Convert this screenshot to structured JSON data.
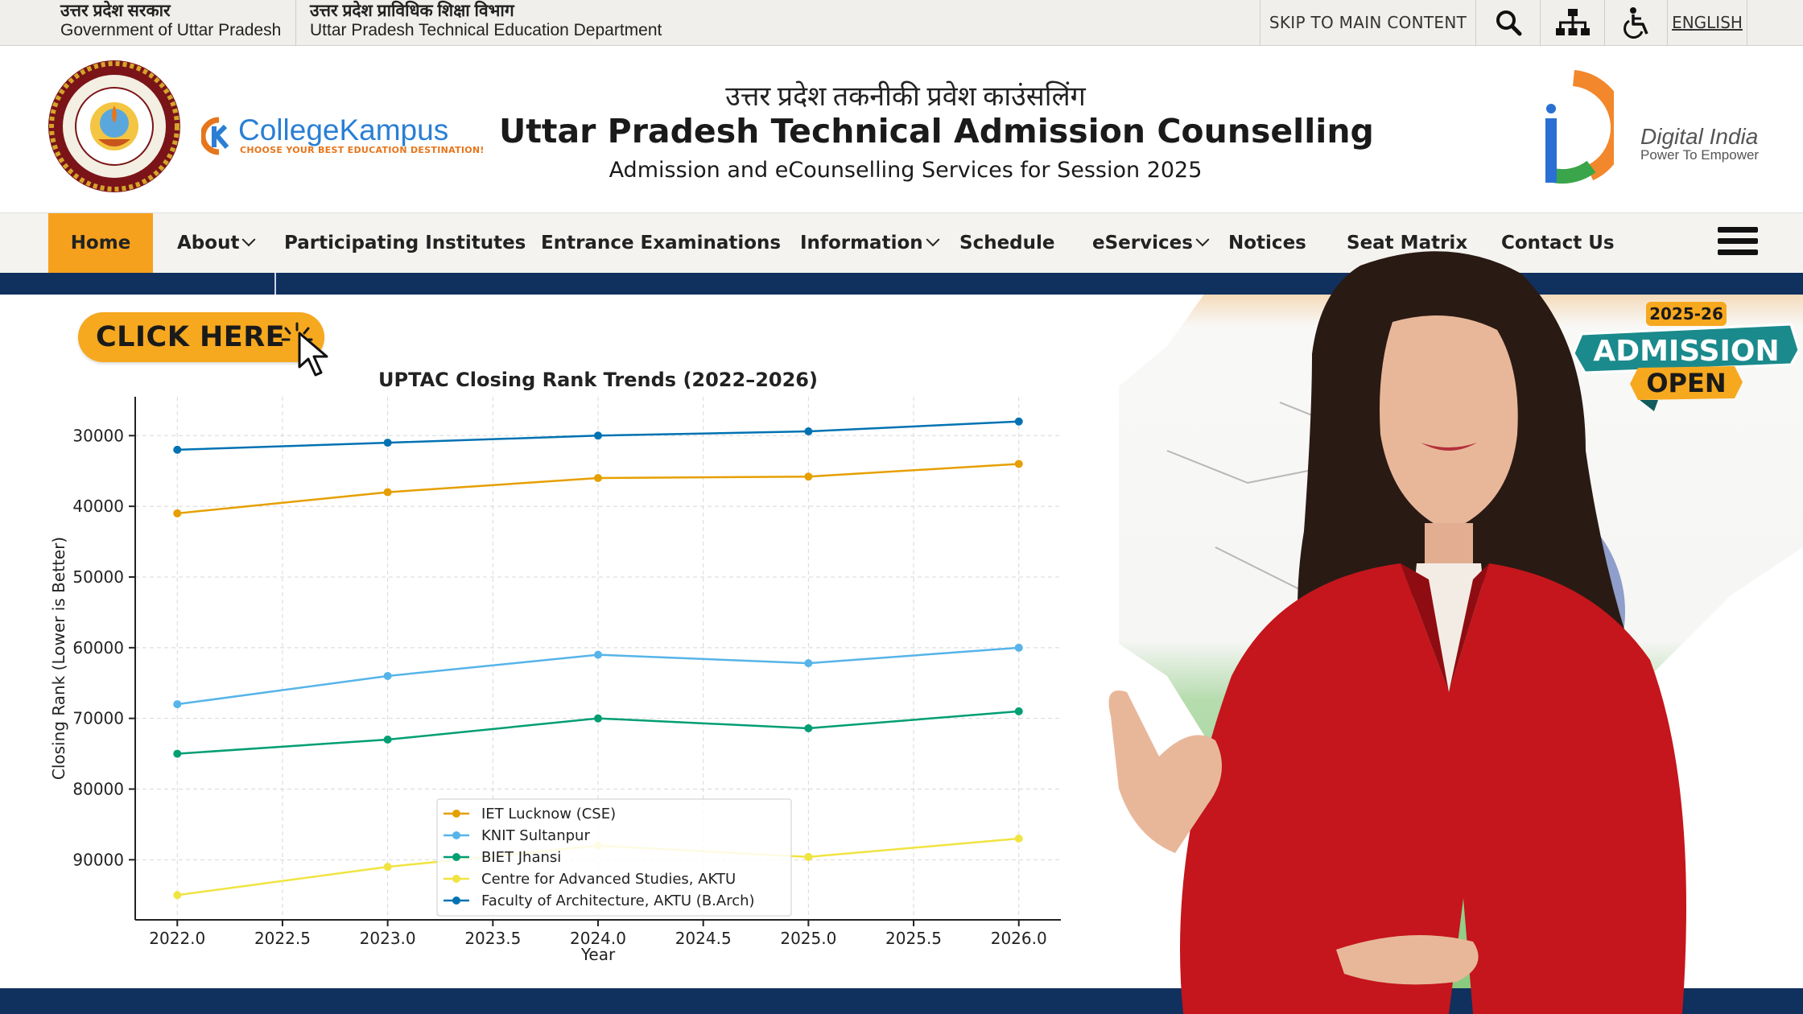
{
  "topbar": {
    "gov1_hindi": "उत्तर प्रदेश सरकार",
    "gov1_english": "Government of Uttar Pradesh",
    "gov2_hindi": "उत्तर प्रदेश प्राविधिक शिक्षा विभाग",
    "gov2_english": "Uttar Pradesh Technical Education Department",
    "skip_link": "SKIP TO MAIN CONTENT",
    "language": "ENGLISH"
  },
  "header": {
    "hindi_title": "उत्तर प्रदेश तकनीकी प्रवेश काउंसलिंग",
    "title": "Uttar Pradesh Technical Admission Counselling",
    "subtitle": "Admission and eCounselling Services for Session 2025",
    "college_kampus": "CollegeKampus",
    "college_kampus_tagline": "CHOOSE YOUR BEST EDUCATION DESTINATION!",
    "digital_india": "Digital India",
    "digital_india_tagline": "Power To Empower"
  },
  "nav": {
    "items": [
      {
        "label": "Home",
        "active": true
      },
      {
        "label": "About",
        "dropdown": true
      },
      {
        "label": "Participating Institutes"
      },
      {
        "label": "Entrance Examinations"
      },
      {
        "label": "Information",
        "dropdown": true
      },
      {
        "label": "Schedule"
      },
      {
        "label": "eServices",
        "dropdown": true
      },
      {
        "label": "Notices"
      },
      {
        "label": "Seat Matrix"
      },
      {
        "label": "Contact Us"
      }
    ]
  },
  "cta": {
    "click_here": "CLICK HERE"
  },
  "badge": {
    "year": "2025-26",
    "line1": "ADMISSION",
    "line2": "OPEN"
  },
  "colors": {
    "navy": "#10305e",
    "orange": "#f6a11d",
    "teal": "#1b8a8c"
  },
  "chart_data": {
    "type": "line",
    "title": "UPTAC Closing Rank Trends (2022–2026)",
    "xlabel": "Year",
    "ylabel": "Closing Rank (Lower is Better)",
    "x": [
      2022,
      2023,
      2024,
      2025,
      2026
    ],
    "xticks": [
      "2022.0",
      "2022.5",
      "2023.0",
      "2023.5",
      "2024.0",
      "2024.5",
      "2025.0",
      "2025.5",
      "2026.0"
    ],
    "yticks": [
      "30000",
      "40000",
      "50000",
      "60000",
      "70000",
      "80000",
      "90000"
    ],
    "xlim": [
      2021.8,
      2026.2
    ],
    "ylim": [
      98500,
      24500
    ],
    "y_inverted": true,
    "grid": true,
    "legend_position": "lower-center",
    "series": [
      {
        "name": "IET Lucknow (CSE)",
        "color": "#e69f00",
        "values": [
          41000,
          38000,
          36000,
          35800,
          34000
        ]
      },
      {
        "name": "KNIT Sultanpur",
        "color": "#56b4e9",
        "values": [
          68000,
          64000,
          61000,
          62200,
          60000
        ]
      },
      {
        "name": "BIET Jhansi",
        "color": "#009e73",
        "values": [
          75000,
          73000,
          70000,
          71400,
          69000
        ]
      },
      {
        "name": "Centre for Advanced Studies, AKTU",
        "color": "#f0e442",
        "values": [
          95000,
          91000,
          88000,
          89600,
          87000
        ]
      },
      {
        "name": "Faculty of Architecture, AKTU (B.Arch)",
        "color": "#0072b2",
        "values": [
          32000,
          31000,
          30000,
          29400,
          28000
        ]
      }
    ]
  }
}
